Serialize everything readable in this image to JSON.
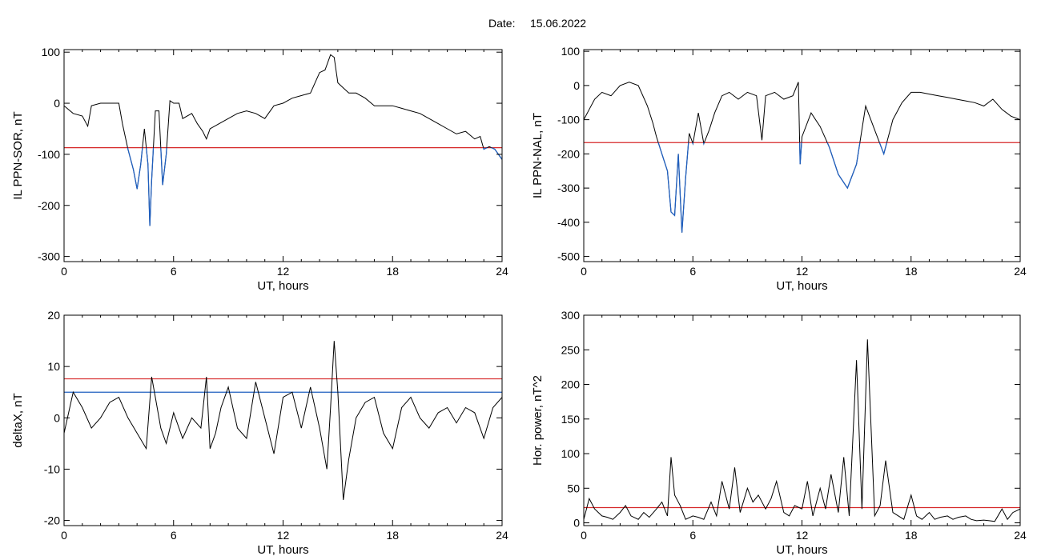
{
  "header": {
    "date_label": "Date:",
    "date_value": "15.06.2022"
  },
  "chart_data": [
    {
      "id": "p1",
      "type": "line",
      "xlabel": "UT, hours",
      "ylabel": "IL PPN-SOR, nT",
      "xlim": [
        0,
        24
      ],
      "ylim": [
        -310,
        105
      ],
      "xticks": [
        0,
        6,
        12,
        18,
        24
      ],
      "yticks": [
        100,
        0,
        -100,
        -200,
        -300
      ],
      "threshold": {
        "y": -87,
        "color": "#d62728"
      },
      "below_color": "#1f5fbf",
      "x": [
        0,
        0.5,
        1,
        1.3,
        1.5,
        2,
        2.5,
        3,
        3.2,
        3.5,
        3.8,
        4,
        4.2,
        4.4,
        4.6,
        4.7,
        4.8,
        5,
        5.2,
        5.4,
        5.6,
        5.8,
        6,
        6.3,
        6.5,
        7,
        7.3,
        7.6,
        7.8,
        8,
        8.5,
        9,
        9.5,
        10,
        10.5,
        11,
        11.5,
        12,
        12.5,
        13,
        13.5,
        14,
        14.3,
        14.6,
        14.8,
        15,
        15.3,
        15.6,
        16,
        16.5,
        17,
        17.5,
        18,
        18.5,
        19,
        19.5,
        20,
        20.5,
        21,
        21.5,
        22,
        22.5,
        22.8,
        23,
        23.3,
        23.6,
        23.8,
        24
      ],
      "values": [
        -5,
        -20,
        -25,
        -45,
        -5,
        0,
        0,
        0,
        -40,
        -90,
        -130,
        -168,
        -120,
        -50,
        -120,
        -240,
        -150,
        -15,
        -15,
        -160,
        -100,
        5,
        0,
        0,
        -30,
        -20,
        -40,
        -55,
        -70,
        -50,
        -40,
        -30,
        -20,
        -15,
        -20,
        -30,
        -5,
        0,
        10,
        15,
        20,
        60,
        65,
        95,
        90,
        40,
        30,
        20,
        20,
        10,
        -5,
        -5,
        -5,
        -10,
        -15,
        -20,
        -30,
        -40,
        -50,
        -60,
        -55,
        -70,
        -65,
        -90,
        -85,
        -90,
        -100,
        -110
      ]
    },
    {
      "id": "p2",
      "type": "line",
      "xlabel": "UT, hours",
      "ylabel": "IL PPN-NAL, nT",
      "xlim": [
        0,
        24
      ],
      "ylim": [
        -515,
        105
      ],
      "xticks": [
        0,
        6,
        12,
        18,
        24
      ],
      "yticks": [
        100,
        0,
        -100,
        -200,
        -300,
        -400,
        -500
      ],
      "threshold": {
        "y": -167,
        "color": "#d62728"
      },
      "below_color": "#1f5fbf",
      "x": [
        0,
        0.3,
        0.6,
        1,
        1.5,
        2,
        2.5,
        3,
        3.5,
        3.8,
        4,
        4.3,
        4.6,
        4.8,
        5,
        5.2,
        5.4,
        5.6,
        5.8,
        6,
        6.3,
        6.6,
        6.9,
        7.2,
        7.6,
        8,
        8.5,
        9,
        9.5,
        9.8,
        10,
        10.5,
        11,
        11.5,
        11.8,
        11.9,
        12,
        12.5,
        13,
        13.5,
        14,
        14.5,
        15,
        15.5,
        16,
        16.5,
        17,
        17.5,
        18,
        18.5,
        19,
        19.5,
        20,
        20.5,
        21,
        21.5,
        22,
        22.5,
        23,
        23.5,
        24
      ],
      "values": [
        -100,
        -70,
        -40,
        -20,
        -30,
        0,
        10,
        0,
        -60,
        -110,
        -150,
        -200,
        -250,
        -370,
        -380,
        -200,
        -430,
        -270,
        -140,
        -170,
        -80,
        -170,
        -130,
        -80,
        -30,
        -20,
        -40,
        -20,
        -30,
        -160,
        -30,
        -20,
        -40,
        -30,
        10,
        -230,
        -150,
        -80,
        -120,
        -180,
        -260,
        -300,
        -230,
        -60,
        -130,
        -200,
        -100,
        -50,
        -20,
        -20,
        -25,
        -30,
        -35,
        -40,
        -45,
        -50,
        -60,
        -40,
        -70,
        -90,
        -100
      ]
    },
    {
      "id": "p3",
      "type": "line",
      "xlabel": "UT, hours",
      "ylabel": "deltaX, nT",
      "xlim": [
        0,
        24
      ],
      "ylim": [
        -21,
        20
      ],
      "xticks": [
        0,
        6,
        12,
        18,
        24
      ],
      "yticks": [
        20,
        10,
        0,
        -10,
        -20
      ],
      "lines": [
        {
          "y": 7.6,
          "color": "#d62728"
        },
        {
          "y": 5,
          "color": "#1f5fbf"
        }
      ],
      "x": [
        0,
        0.5,
        1,
        1.5,
        2,
        2.5,
        3,
        3.5,
        4,
        4.5,
        4.8,
        5,
        5.3,
        5.6,
        6,
        6.5,
        7,
        7.5,
        7.8,
        8,
        8.3,
        8.6,
        9,
        9.5,
        10,
        10.5,
        11,
        11.5,
        12,
        12.5,
        13,
        13.5,
        14,
        14.4,
        14.6,
        14.8,
        15,
        15.3,
        15.6,
        16,
        16.5,
        17,
        17.5,
        18,
        18.5,
        19,
        19.5,
        20,
        20.5,
        21,
        21.5,
        22,
        22.5,
        23,
        23.5,
        24
      ],
      "values": [
        -3,
        5,
        2,
        -2,
        0,
        3,
        4,
        0,
        -3,
        -6,
        8,
        4,
        -2,
        -5,
        1,
        -4,
        0,
        -2,
        8,
        -6,
        -3,
        2,
        6,
        -2,
        -4,
        7,
        0,
        -7,
        4,
        5,
        -2,
        6,
        -2,
        -10,
        2,
        15,
        5,
        -16,
        -8,
        0,
        3,
        4,
        -3,
        -6,
        2,
        4,
        0,
        -2,
        1,
        2,
        -1,
        2,
        1,
        -4,
        2,
        4
      ]
    },
    {
      "id": "p4",
      "type": "line",
      "xlabel": "UT, hours",
      "ylabel": "Hor. power, nT^2",
      "xlim": [
        0,
        24
      ],
      "ylim": [
        -4,
        300
      ],
      "xticks": [
        0,
        6,
        12,
        18,
        24
      ],
      "yticks": [
        300,
        250,
        200,
        150,
        100,
        50,
        0
      ],
      "threshold": {
        "y": 22,
        "color": "#d62728"
      },
      "x": [
        0,
        0.3,
        0.6,
        1,
        1.3,
        1.6,
        2,
        2.3,
        2.6,
        3,
        3.3,
        3.6,
        4,
        4.3,
        4.6,
        4.8,
        5,
        5.3,
        5.6,
        6,
        6.3,
        6.6,
        7,
        7.3,
        7.6,
        8,
        8.3,
        8.6,
        9,
        9.3,
        9.6,
        10,
        10.3,
        10.6,
        11,
        11.3,
        11.6,
        12,
        12.3,
        12.6,
        13,
        13.3,
        13.6,
        14,
        14.3,
        14.6,
        15,
        15.3,
        15.6,
        16,
        16.3,
        16.6,
        17,
        17.3,
        17.6,
        18,
        18.3,
        18.6,
        19,
        19.3,
        19.6,
        20,
        20.3,
        20.6,
        21,
        21.3,
        21.6,
        22,
        22.3,
        22.6,
        23,
        23.3,
        23.6,
        24
      ],
      "values": [
        5,
        35,
        20,
        10,
        8,
        5,
        15,
        25,
        10,
        5,
        15,
        8,
        20,
        30,
        10,
        95,
        40,
        25,
        5,
        10,
        8,
        5,
        30,
        10,
        60,
        20,
        80,
        15,
        50,
        30,
        40,
        20,
        35,
        60,
        15,
        10,
        25,
        20,
        60,
        10,
        50,
        20,
        70,
        15,
        95,
        10,
        235,
        20,
        265,
        10,
        25,
        90,
        15,
        10,
        5,
        40,
        10,
        5,
        15,
        5,
        8,
        10,
        5,
        8,
        10,
        5,
        3,
        4,
        3,
        2,
        20,
        5,
        15,
        20
      ]
    }
  ]
}
